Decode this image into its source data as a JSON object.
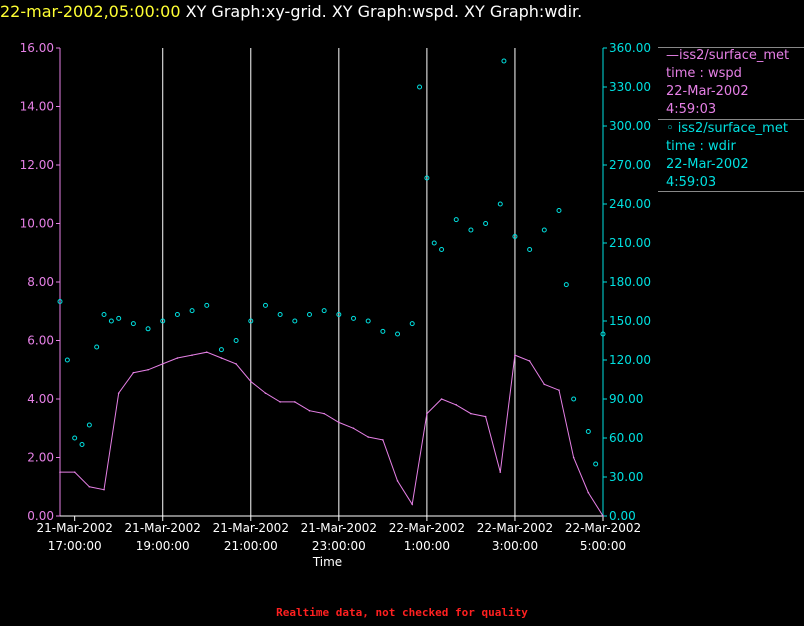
{
  "title": {
    "timestamp": "22-mar-2002,05:00:00",
    "graphs": "XY Graph:xy-grid.  XY Graph:wspd.  XY Graph:wdir."
  },
  "legend": [
    {
      "line1": "—iss2/surface_met",
      "line2": "time : wspd",
      "line3": "22-Mar-2002",
      "line4": "4:59:03",
      "color": "#e680e6"
    },
    {
      "line1": "◦ iss2/surface_met",
      "line2": "time : wdir",
      "line3": "22-Mar-2002",
      "line4": "4:59:03",
      "color": "#00e0e0"
    }
  ],
  "footer": "Realtime data, not checked for quality",
  "chart_data": {
    "type": "line",
    "xlabel": "Time",
    "x_range": [
      "2002-03-21 16:40:00",
      "2002-03-22 05:00:00"
    ],
    "x_ticks": [
      {
        "date": "21-Mar-2002",
        "time": "17:00:00",
        "t": "2002-03-21 17:00"
      },
      {
        "date": "21-Mar-2002",
        "time": "19:00:00",
        "t": "2002-03-21 19:00"
      },
      {
        "date": "21-Mar-2002",
        "time": "21:00:00",
        "t": "2002-03-21 21:00"
      },
      {
        "date": "21-Mar-2002",
        "time": "23:00:00",
        "t": "2002-03-21 23:00"
      },
      {
        "date": "22-Mar-2002",
        "time": "1:00:00",
        "t": "2002-03-22 01:00"
      },
      {
        "date": "22-Mar-2002",
        "time": "3:00:00",
        "t": "2002-03-22 03:00"
      },
      {
        "date": "22-Mar-2002",
        "time": "5:00:00",
        "t": "2002-03-22 05:00"
      }
    ],
    "grid_lines": [
      "2002-03-21 19:00",
      "2002-03-21 21:00",
      "2002-03-21 23:00",
      "2002-03-22 01:00",
      "2002-03-22 03:00",
      "2002-03-22 05:00"
    ],
    "y_left": {
      "range": [
        0,
        16
      ],
      "ticks": [
        "0.00",
        "2.00",
        "4.00",
        "6.00",
        "8.00",
        "10.00",
        "12.00",
        "14.00",
        "16.00"
      ],
      "color": "#e680e6"
    },
    "y_right": {
      "range": [
        0,
        360
      ],
      "ticks": [
        "0.00",
        "30.00",
        "60.00",
        "90.00",
        "120.00",
        "150.00",
        "180.00",
        "210.00",
        "240.00",
        "270.00",
        "300.00",
        "330.00",
        "360.00"
      ],
      "color": "#00e0e0"
    },
    "series": [
      {
        "name": "iss2/surface_met time : wspd",
        "axis": "left",
        "style": "line",
        "color": "#e680e6",
        "x": [
          "2002-03-21 16:40",
          "2002-03-21 17:00",
          "2002-03-21 17:20",
          "2002-03-21 17:40",
          "2002-03-21 18:00",
          "2002-03-21 18:20",
          "2002-03-21 18:40",
          "2002-03-21 19:00",
          "2002-03-21 19:20",
          "2002-03-21 19:40",
          "2002-03-21 20:00",
          "2002-03-21 20:20",
          "2002-03-21 20:40",
          "2002-03-21 21:00",
          "2002-03-21 21:20",
          "2002-03-21 21:40",
          "2002-03-21 22:00",
          "2002-03-21 22:20",
          "2002-03-21 22:40",
          "2002-03-21 23:00",
          "2002-03-21 23:20",
          "2002-03-21 23:40",
          "2002-03-22 00:00",
          "2002-03-22 00:20",
          "2002-03-22 00:40",
          "2002-03-22 01:00",
          "2002-03-22 01:20",
          "2002-03-22 01:40",
          "2002-03-22 02:00",
          "2002-03-22 02:20",
          "2002-03-22 02:40",
          "2002-03-22 03:00",
          "2002-03-22 03:20",
          "2002-03-22 03:40",
          "2002-03-22 04:00",
          "2002-03-22 04:20",
          "2002-03-22 04:40",
          "2002-03-22 05:00"
        ],
        "y": [
          1.5,
          1.5,
          1.0,
          0.9,
          4.2,
          4.9,
          5.0,
          5.2,
          5.4,
          5.5,
          5.6,
          5.4,
          5.2,
          4.6,
          4.2,
          3.9,
          3.9,
          3.6,
          3.5,
          3.2,
          3.0,
          2.7,
          2.6,
          1.2,
          0.4,
          3.5,
          4.0,
          3.8,
          3.5,
          3.4,
          1.5,
          5.5,
          5.3,
          4.5,
          4.3,
          2.0,
          0.8,
          0.0
        ]
      },
      {
        "name": "iss2/surface_met time : wdir",
        "axis": "right",
        "style": "scatter",
        "color": "#00e0e0",
        "x": [
          "2002-03-21 16:40",
          "2002-03-21 16:50",
          "2002-03-21 17:00",
          "2002-03-21 17:10",
          "2002-03-21 17:20",
          "2002-03-21 17:30",
          "2002-03-21 17:40",
          "2002-03-21 17:50",
          "2002-03-21 18:00",
          "2002-03-21 18:20",
          "2002-03-21 18:40",
          "2002-03-21 19:00",
          "2002-03-21 19:20",
          "2002-03-21 19:40",
          "2002-03-21 20:00",
          "2002-03-21 20:20",
          "2002-03-21 20:40",
          "2002-03-21 21:00",
          "2002-03-21 21:20",
          "2002-03-21 21:40",
          "2002-03-21 22:00",
          "2002-03-21 22:20",
          "2002-03-21 22:40",
          "2002-03-21 23:00",
          "2002-03-21 23:20",
          "2002-03-21 23:40",
          "2002-03-22 00:00",
          "2002-03-22 00:20",
          "2002-03-22 00:40",
          "2002-03-22 00:50",
          "2002-03-22 01:00",
          "2002-03-22 01:10",
          "2002-03-22 01:20",
          "2002-03-22 01:40",
          "2002-03-22 02:00",
          "2002-03-22 02:20",
          "2002-03-22 02:40",
          "2002-03-22 02:45",
          "2002-03-22 03:00",
          "2002-03-22 03:20",
          "2002-03-22 03:40",
          "2002-03-22 04:00",
          "2002-03-22 04:10",
          "2002-03-22 04:20",
          "2002-03-22 04:40",
          "2002-03-22 04:50",
          "2002-03-22 05:00"
        ],
        "y": [
          165,
          120,
          60,
          55,
          70,
          130,
          155,
          150,
          152,
          148,
          144,
          150,
          155,
          158,
          162,
          128,
          135,
          150,
          162,
          155,
          150,
          155,
          158,
          155,
          152,
          150,
          142,
          140,
          148,
          330,
          260,
          210,
          205,
          228,
          220,
          225,
          240,
          350,
          215,
          205,
          220,
          235,
          178,
          90,
          65,
          40,
          140
        ]
      }
    ]
  }
}
